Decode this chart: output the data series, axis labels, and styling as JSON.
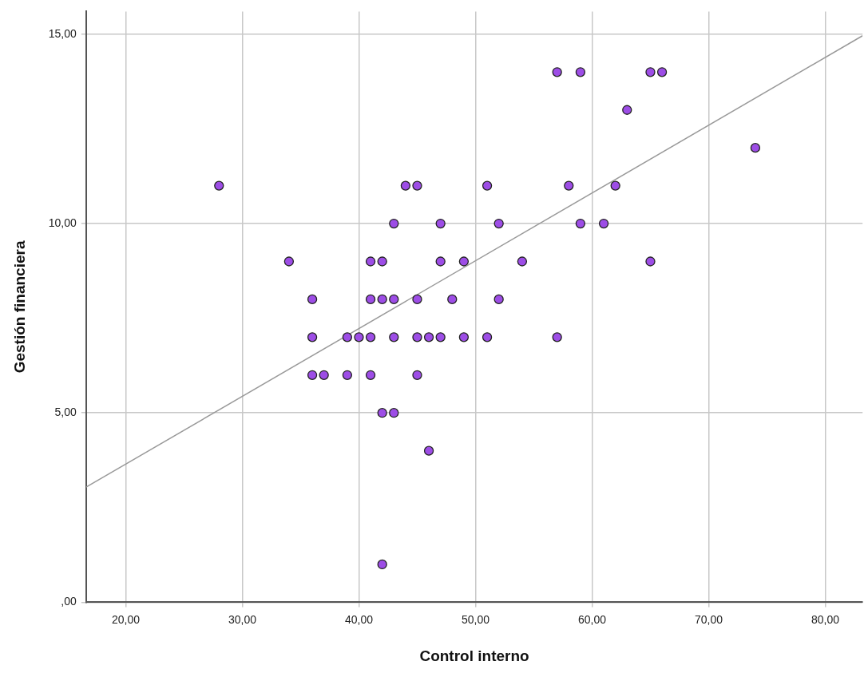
{
  "chart_data": {
    "type": "scatter",
    "xlabel": "Control interno",
    "ylabel": "Gestión financiera",
    "xlim": [
      16.6,
      83.2
    ],
    "ylim": [
      0,
      15.6
    ],
    "xticks": [
      {
        "value": 20,
        "label": "20,00"
      },
      {
        "value": 30,
        "label": "30,00"
      },
      {
        "value": 40,
        "label": "40,00"
      },
      {
        "value": 50,
        "label": "50,00"
      },
      {
        "value": 60,
        "label": "60,00"
      },
      {
        "value": 70,
        "label": "70,00"
      },
      {
        "value": 80,
        "label": "80,00"
      }
    ],
    "yticks": [
      {
        "value": 0,
        "label": ",00"
      },
      {
        "value": 5,
        "label": "5,00"
      },
      {
        "value": 10,
        "label": "10,00"
      },
      {
        "value": 15,
        "label": "15,00"
      }
    ],
    "grid": true,
    "legend": false,
    "series": [
      {
        "color": "#9d4de6",
        "marker": "circle",
        "x": [
          28,
          34,
          36,
          36,
          36,
          37,
          39,
          40,
          41,
          39,
          41,
          41,
          41,
          42,
          42,
          42,
          42,
          43,
          43,
          43,
          43,
          44,
          45,
          45,
          45,
          45,
          46,
          46,
          47,
          47,
          47,
          48,
          49,
          49,
          51,
          51,
          52,
          52,
          54,
          57,
          57,
          58,
          59,
          59,
          61,
          62,
          63,
          65,
          65,
          66,
          74
        ],
        "values": [
          11,
          9,
          8,
          7,
          6,
          6,
          7,
          7,
          7,
          6,
          6,
          9,
          8,
          9,
          8,
          5,
          1,
          8,
          10,
          7,
          5,
          11,
          11,
          8,
          7,
          6,
          7,
          4,
          10,
          9,
          7,
          8,
          9,
          7,
          11,
          7,
          10,
          8,
          9,
          14,
          7,
          11,
          14,
          10,
          10,
          11,
          13,
          14,
          9,
          14,
          12
        ]
      },
      {
        "type": "line",
        "marker": "none",
        "color": "#999999",
        "x": [
          16.6,
          83.2
        ],
        "values": [
          3.04,
          14.96
        ]
      }
    ]
  }
}
